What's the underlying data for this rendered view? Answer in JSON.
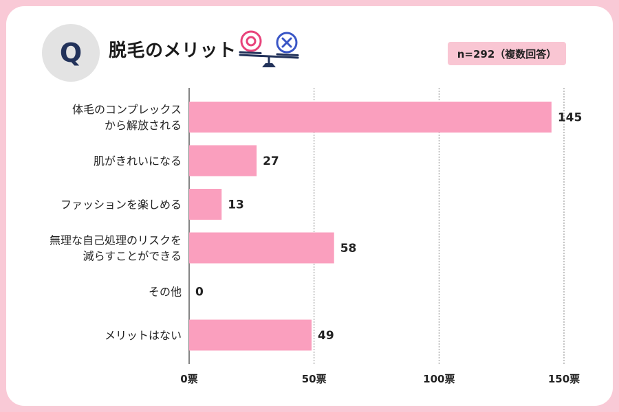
{
  "header": {
    "q_letter": "Q",
    "title": "脱毛のメリット",
    "sample_note": "n=292（複数回答）"
  },
  "chart_data": {
    "type": "bar",
    "orientation": "horizontal",
    "categories": [
      [
        "体毛のコンプレックス",
        "から解放される"
      ],
      [
        "肌がきれいになる"
      ],
      [
        "ファッションを楽しめる"
      ],
      [
        "無理な自己処理のリスクを",
        "減らすことができる"
      ],
      [
        "その他"
      ],
      [
        "メリットはない"
      ]
    ],
    "values": [
      145,
      27,
      13,
      58,
      0,
      49
    ],
    "xlim": [
      0,
      150
    ],
    "ticks": [
      0,
      50,
      100,
      150
    ],
    "tick_labels": [
      "0票",
      "50票",
      "100票",
      "150票"
    ],
    "grid": true,
    "bar_color": "#fa9fbe"
  },
  "colors": {
    "frame": "#f9c9d6",
    "bar": "#fa9fbe",
    "note_bg": "#f9c6d3",
    "icon_pink": "#e8437b",
    "icon_blue": "#3a56c6",
    "icon_navy": "#22325a"
  },
  "icons": [
    "balance-scale-icon",
    "circle-mark-icon",
    "cross-mark-icon"
  ]
}
